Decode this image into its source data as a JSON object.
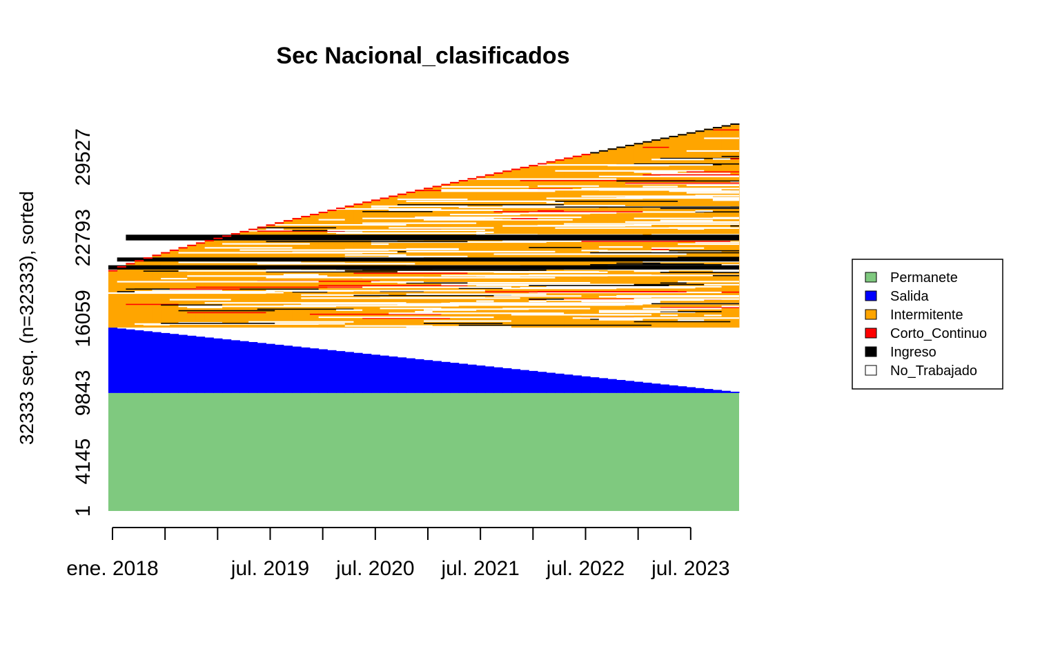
{
  "chart_data": {
    "type": "heatmap",
    "title": "Sec Nacional_clasificados",
    "ylabel": "32333 seq. (n=32333), sorted",
    "xlabel": "",
    "n_sequences": 32333,
    "n_periods": 72,
    "time_start": "ene. 2018",
    "time_end": "dic. 2023",
    "y_ticks": [
      1,
      4145,
      9843,
      16059,
      22793,
      29527
    ],
    "x_ticks": [
      {
        "period": 1,
        "label": "ene. 2018"
      },
      {
        "period": 7,
        "label": ""
      },
      {
        "period": 13,
        "label": ""
      },
      {
        "period": 19,
        "label": "jul. 2019"
      },
      {
        "period": 25,
        "label": ""
      },
      {
        "period": 31,
        "label": "jul. 2020"
      },
      {
        "period": 37,
        "label": ""
      },
      {
        "period": 43,
        "label": "jul. 2021"
      },
      {
        "period": 49,
        "label": ""
      },
      {
        "period": 55,
        "label": "jul. 2022"
      },
      {
        "period": 61,
        "label": ""
      },
      {
        "period": 67,
        "label": "jul. 2023"
      }
    ],
    "states": [
      {
        "name": "Permanete",
        "color": "#7fc97f"
      },
      {
        "name": "Salida",
        "color": "#0000ff"
      },
      {
        "name": "Intermitente",
        "color": "#ffa500"
      },
      {
        "name": "Corto_Continuo",
        "color": "#ff0000"
      },
      {
        "name": "Ingreso",
        "color": "#000000"
      },
      {
        "name": "No_Trabajado",
        "color": "#ffffff"
      }
    ],
    "legend_position": "right",
    "blocks": [
      {
        "state": "Permanete",
        "from_seq": 1,
        "to_seq": 9843
      },
      {
        "state": "Salida",
        "from_seq": 9844,
        "to_seq": 15300
      },
      {
        "state": "Intermitente",
        "from_seq": 15301,
        "to_seq": 32333
      }
    ]
  }
}
